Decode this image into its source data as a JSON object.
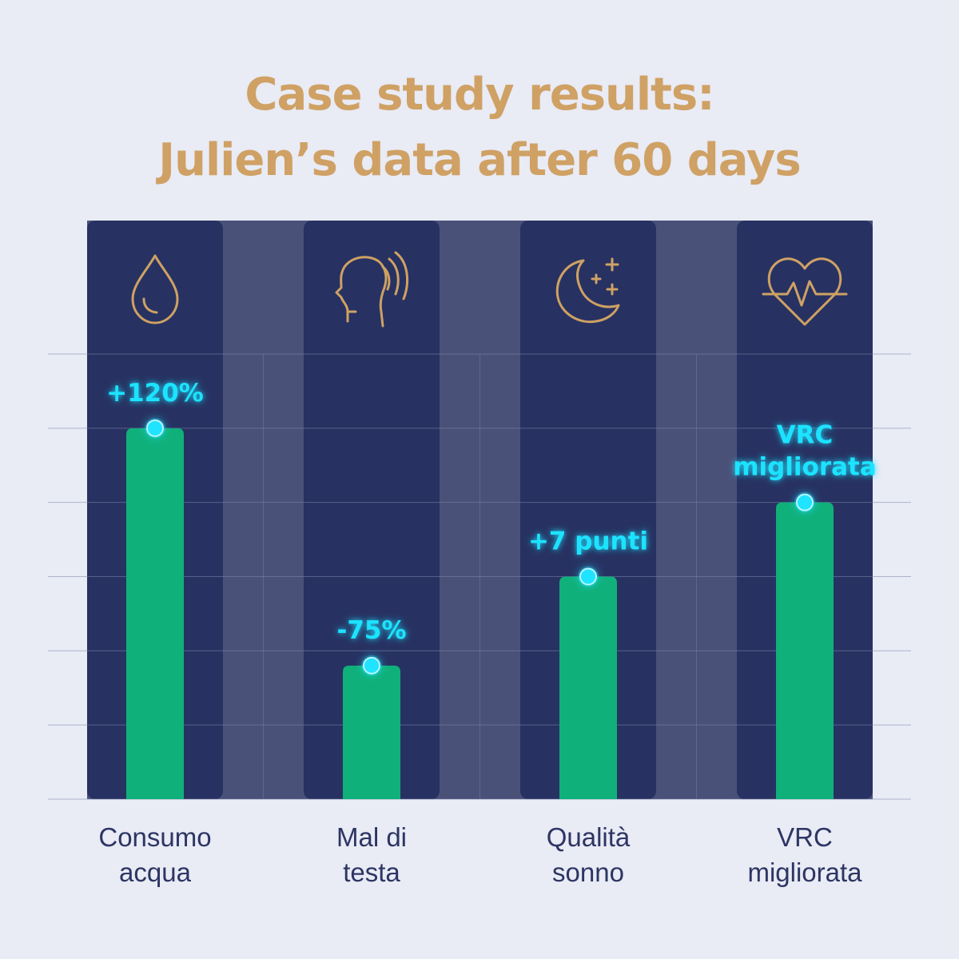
{
  "title_line1": "Case study results:",
  "title_line2": "Julien’s data after 60 days",
  "colors": {
    "background": "#e9ebf5",
    "panel": "#273262",
    "bar": "#10b07a",
    "glow": "#1fe3ff",
    "title": "#cfa164",
    "icon": "#cfa164",
    "label": "#2d3563"
  },
  "chart_data": {
    "type": "bar",
    "title": "Case study results: Julien’s data after 60 days",
    "categories": [
      "Consumo acqua",
      "Mal di testa",
      "Qualità sonno",
      "VRC migliorata"
    ],
    "category_lines": [
      [
        "Consumo",
        "acqua"
      ],
      [
        "Mal di",
        "testa"
      ],
      [
        "Qualità",
        "sonno"
      ],
      [
        "VRC",
        "migliorata"
      ]
    ],
    "values": [
      5,
      1.8,
      3,
      4
    ],
    "value_labels": [
      [
        "+120%"
      ],
      [
        "-75%"
      ],
      [
        "+7 punti"
      ],
      [
        "VRC",
        "migliorata"
      ]
    ],
    "icons": [
      "water-drop-icon",
      "head-pain-icon",
      "moon-stars-icon",
      "heart-pulse-icon"
    ],
    "ylim": [
      0,
      6
    ],
    "grid": true,
    "legend": "none"
  }
}
